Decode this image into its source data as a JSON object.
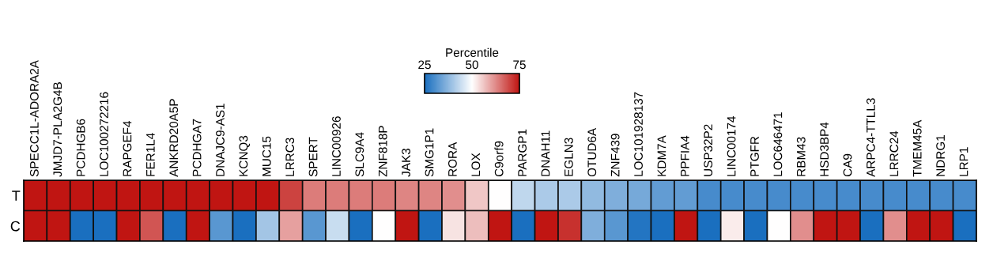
{
  "chart_data": {
    "type": "heatmap",
    "categories": [
      "SPECC1L-ADORA2A",
      "JMJD7-PLA2G4B",
      "PCDHGB6",
      "LOC100272216",
      "RAPGEF4",
      "FER1L4",
      "ANKRD20A5P",
      "PCDHGA7",
      "DNAJC9-AS1",
      "KCNQ3",
      "MUC15",
      "LRRC3",
      "SPERT",
      "LINC00926",
      "SLC9A4",
      "ZNF818P",
      "JAK3",
      "SMG1P1",
      "RORA",
      "LOX",
      "C9orf9",
      "PARGP1",
      "DNAH11",
      "EGLN3",
      "OTUD6A",
      "ZNF439",
      "LOC101928137",
      "KDM7A",
      "PPFIA4",
      "USP32P2",
      "LINC00174",
      "PTGFR",
      "LOC646471",
      "RBM43",
      "HSD3BP4",
      "CA9",
      "ARPC4-TTLL3",
      "LRRC24",
      "TMEM45A",
      "NDRG1",
      "LRP1"
    ],
    "y_categories": [
      "T",
      "C"
    ],
    "cells": [
      [
        75,
        75,
        75,
        75,
        75,
        75,
        75,
        75,
        75,
        75,
        75,
        70,
        64,
        64,
        64,
        64,
        63,
        63,
        62,
        56,
        50,
        43,
        41,
        41,
        38,
        36,
        35,
        33,
        33,
        30,
        30,
        30,
        30,
        30,
        30,
        30,
        30,
        30,
        30,
        30,
        30
      ],
      [
        75,
        75,
        25,
        25,
        75,
        68,
        25,
        75,
        32,
        25,
        40,
        60,
        32,
        44,
        25,
        50,
        75,
        25,
        53,
        57,
        75,
        25,
        75,
        72,
        36,
        32,
        26,
        25,
        75,
        25,
        52,
        25,
        50,
        62,
        75,
        75,
        25,
        62,
        75,
        75,
        25
      ]
    ],
    "clim": [
      25,
      75
    ],
    "cticks": [
      25,
      50,
      75
    ],
    "clabel": "Percentile",
    "colors": [
      "#1a6fbf",
      "#ffffff",
      "#c01512"
    ]
  }
}
